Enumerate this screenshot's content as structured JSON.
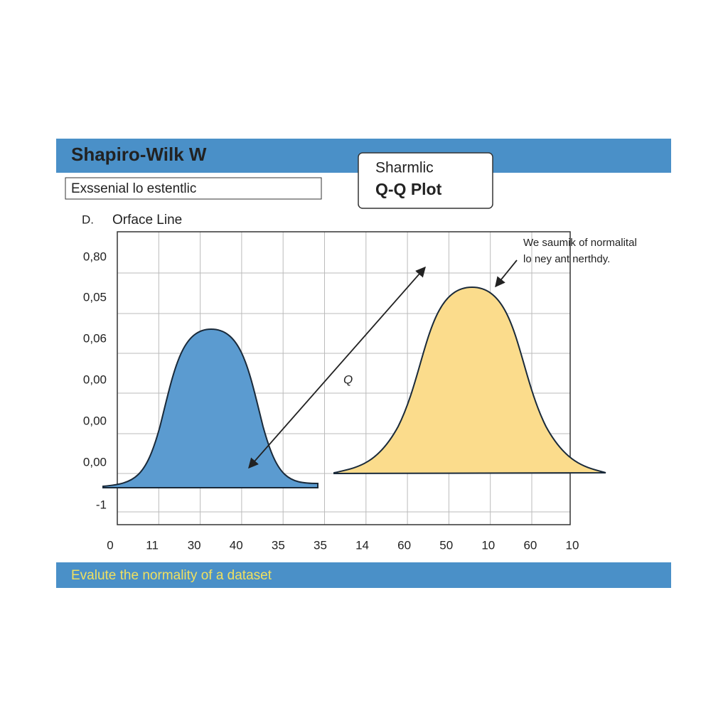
{
  "header": {
    "title": "Shapiro-Wilk W",
    "subtitle": "Exssenial lo estentlic"
  },
  "legend_box": {
    "lines": [
      "Sharmlic",
      "Q-Q Plot"
    ]
  },
  "plot": {
    "corner_label": "D.",
    "line_label": "Orface Line",
    "y_labels": [
      "0,80",
      "0,05",
      "0,06",
      "0,00",
      "0,00",
      "0,00",
      "-1"
    ],
    "x_labels": [
      "0",
      "11",
      "30",
      "40",
      "35",
      "35",
      "14",
      "60",
      "50",
      "10",
      "60",
      "10"
    ],
    "center_label": "Q",
    "annotation": [
      "We saumik of normalital",
      "lo ney ant nerthdy."
    ]
  },
  "footer": {
    "text": "Evalute the normality of a dataset"
  }
}
